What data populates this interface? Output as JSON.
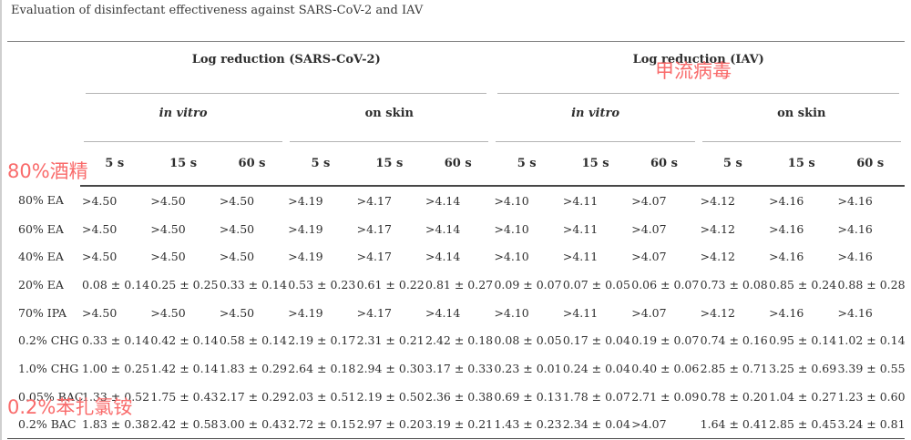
{
  "title": "Evaluation of disinfectant effectiveness against SARS-CoV-2 and IAV",
  "table": {
    "group_headers": [
      {
        "label": "Log reduction (SARS-CoV-2)"
      },
      {
        "label": "Log reduction (IAV)"
      }
    ],
    "condition_headers": [
      "in vitro",
      "on skin",
      "in vitro",
      "on skin"
    ],
    "time_headers": [
      "5 s",
      "15 s",
      "60 s",
      "5 s",
      "15 s",
      "60 s",
      "5 s",
      "15 s",
      "60 s",
      "5 s",
      "15 s",
      "60 s"
    ],
    "rows": [
      {
        "label": "80% EA",
        "values": [
          ">4.50",
          ">4.50",
          ">4.50",
          ">4.19",
          ">4.17",
          ">4.14",
          ">4.10",
          ">4.11",
          ">4.07",
          ">4.12",
          ">4.16",
          ">4.16"
        ]
      },
      {
        "label": "60% EA",
        "values": [
          ">4.50",
          ">4.50",
          ">4.50",
          ">4.19",
          ">4.17",
          ">4.14",
          ">4.10",
          ">4.11",
          ">4.07",
          ">4.12",
          ">4.16",
          ">4.16"
        ]
      },
      {
        "label": "40% EA",
        "values": [
          ">4.50",
          ">4.50",
          ">4.50",
          ">4.19",
          ">4.17",
          ">4.14",
          ">4.10",
          ">4.11",
          ">4.07",
          ">4.12",
          ">4.16",
          ">4.16"
        ]
      },
      {
        "label": "20% EA",
        "values": [
          "0.08 ± 0.14",
          "0.25 ± 0.25",
          "0.33 ± 0.14",
          "0.53 ± 0.23",
          "0.61 ± 0.22",
          "0.81 ± 0.27",
          "0.09 ± 0.07",
          "0.07 ± 0.05",
          "0.06 ± 0.07",
          "0.73 ± 0.08",
          "0.85 ± 0.24",
          "0.88 ± 0.28"
        ]
      },
      {
        "label": "70% IPA",
        "values": [
          ">4.50",
          ">4.50",
          ">4.50",
          ">4.19",
          ">4.17",
          ">4.14",
          ">4.10",
          ">4.11",
          ">4.07",
          ">4.12",
          ">4.16",
          ">4.16"
        ]
      },
      {
        "label": "0.2% CHG",
        "values": [
          "0.33 ± 0.14",
          "0.42 ± 0.14",
          "0.58 ± 0.14",
          "2.19 ± 0.17",
          "2.31 ± 0.21",
          "2.42 ± 0.18",
          "0.08 ± 0.05",
          "0.17 ± 0.04",
          "0.19 ± 0.07",
          "0.74 ± 0.16",
          "0.95 ± 0.14",
          "1.02 ± 0.14"
        ]
      },
      {
        "label": "1.0% CHG",
        "values": [
          "1.00 ± 0.25",
          "1.42 ± 0.14",
          "1.83 ± 0.29",
          "2.64 ± 0.18",
          "2.94 ± 0.30",
          "3.17 ± 0.33",
          "0.23 ± 0.01",
          "0.24 ± 0.04",
          "0.40 ± 0.06",
          "2.85 ± 0.71",
          "3.25 ± 0.69",
          "3.39 ± 0.55"
        ]
      },
      {
        "label": "0.05% BAC",
        "values": [
          "1.33 ± 0.52",
          "1.75 ± 0.43",
          "2.17 ± 0.29",
          "2.03 ± 0.51",
          "2.19 ± 0.50",
          "2.36 ± 0.38",
          "0.69 ± 0.13",
          "1.78 ± 0.07",
          "2.71 ± 0.09",
          "0.78 ± 0.20",
          "1.04 ± 0.27",
          "1.23 ± 0.60"
        ]
      },
      {
        "label": "0.2% BAC",
        "values": [
          "1.83 ± 0.38",
          "2.42 ± 0.58",
          "3.00 ± 0.43",
          "2.72 ± 0.15",
          "2.97 ± 0.20",
          "3.19 ± 0.21",
          "1.43 ± 0.23",
          "2.34 ± 0.04",
          ">4.07",
          "1.64 ± 0.41",
          "2.85 ± 0.45",
          "3.24 ± 0.81"
        ]
      }
    ]
  },
  "annotations": {
    "color": "#f96b6b",
    "iav_label": "甲流病毒",
    "alcohol_label": "80%酒精",
    "bac_label": "0.2%苯扎氯铵"
  }
}
